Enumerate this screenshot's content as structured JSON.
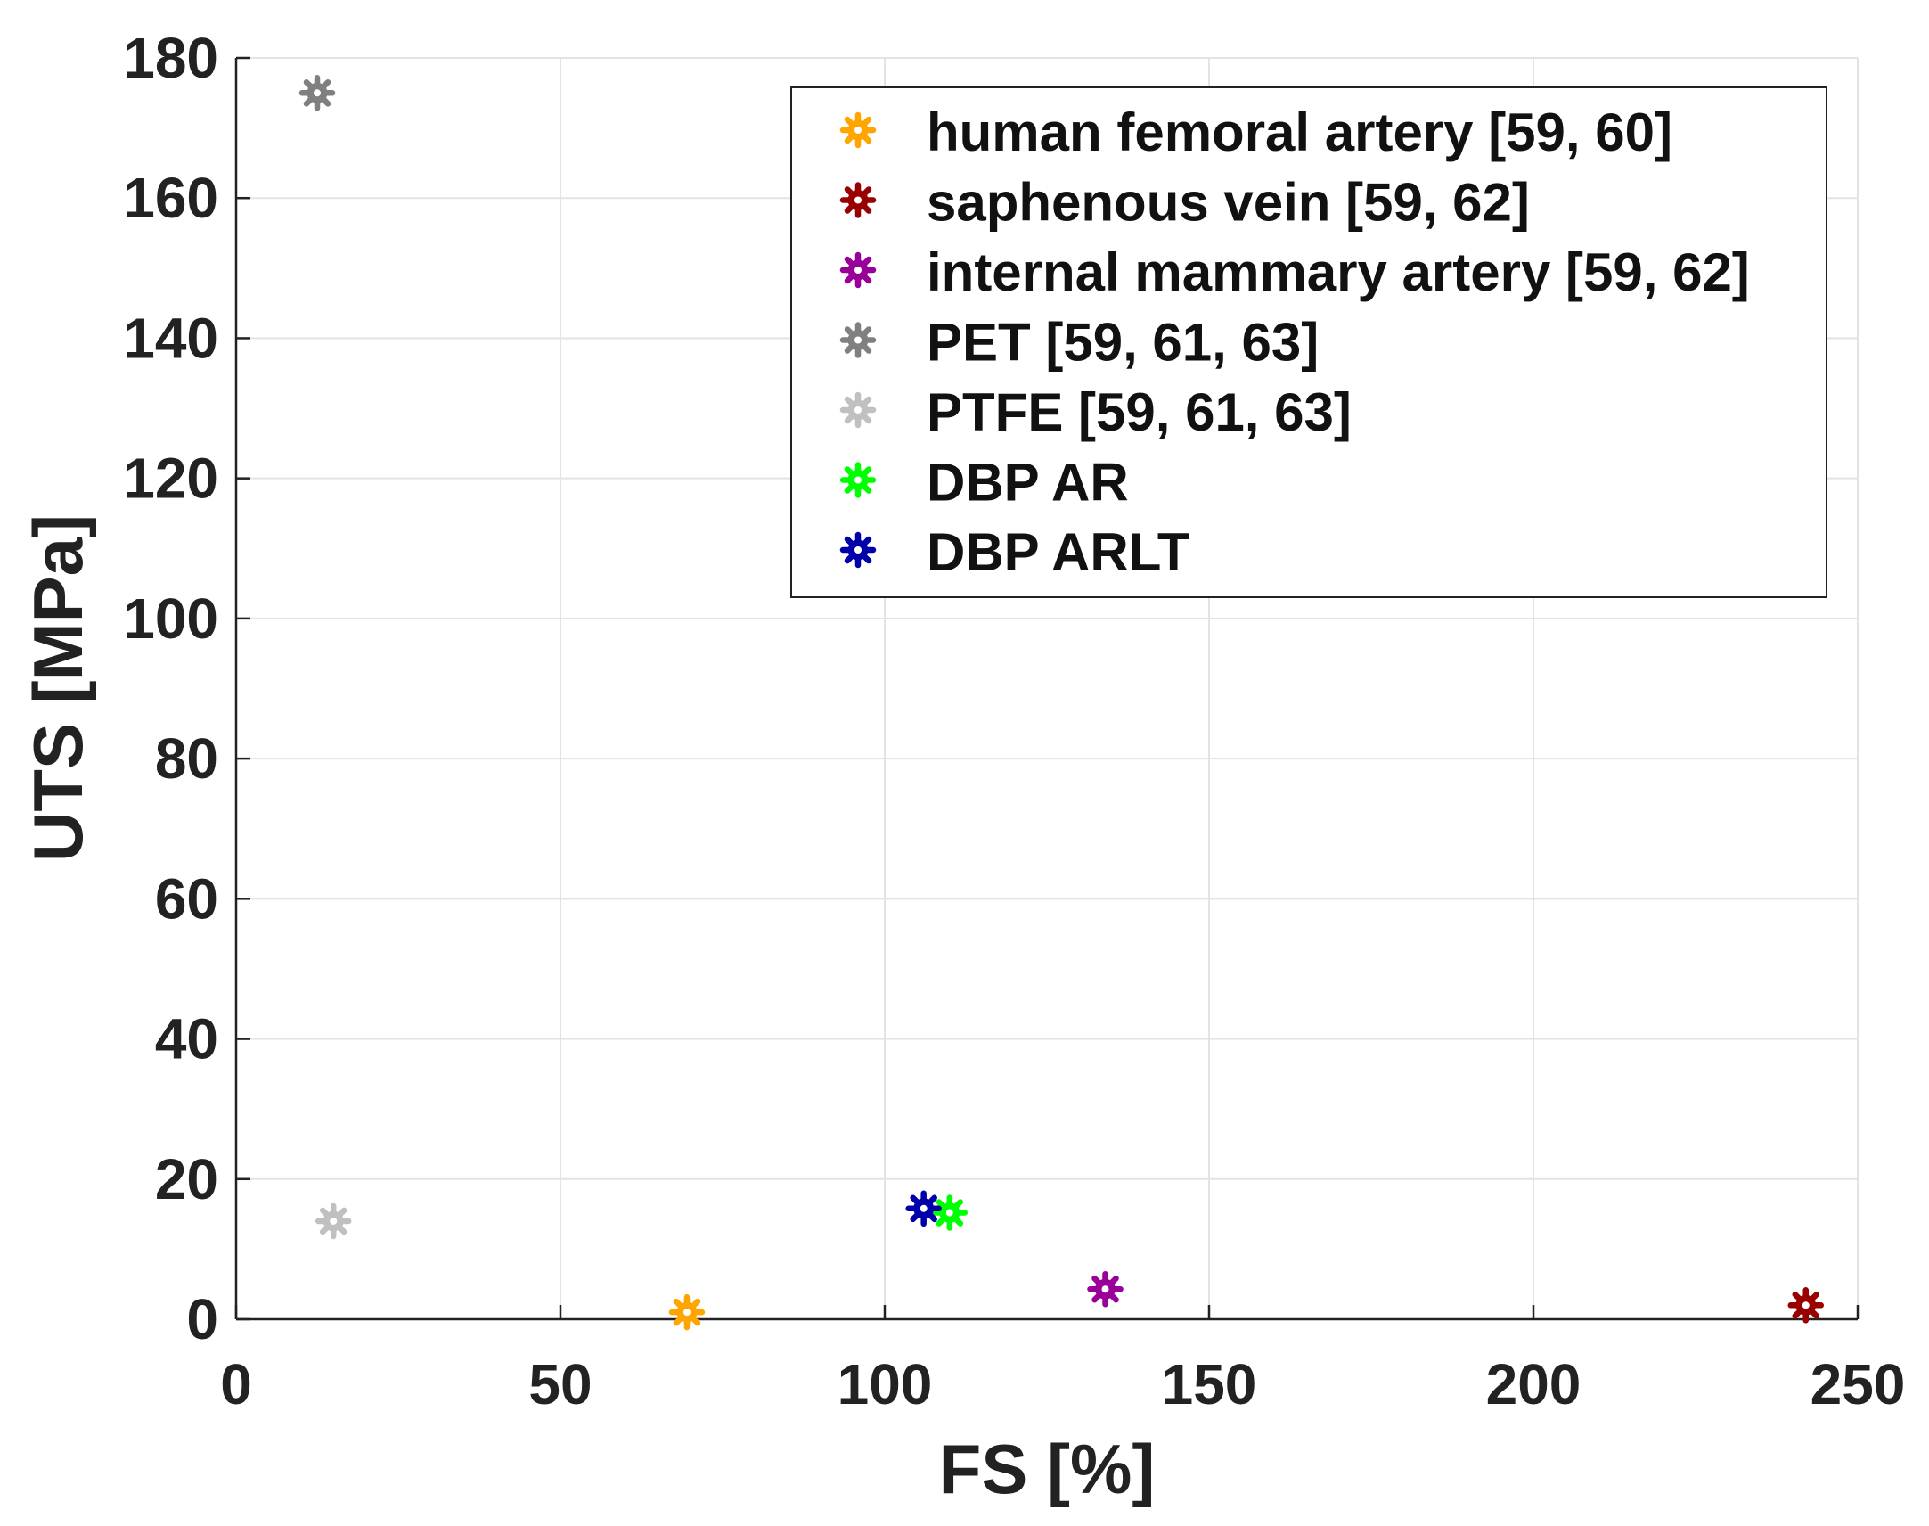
{
  "chart_data": {
    "type": "scatter",
    "title": "",
    "xlabel": "FS [%]",
    "ylabel": "UTS [MPa]",
    "xlim": [
      0,
      250
    ],
    "ylim": [
      0,
      180
    ],
    "xticks": [
      0,
      50,
      100,
      150,
      200,
      250
    ],
    "yticks": [
      0,
      20,
      40,
      60,
      80,
      100,
      120,
      140,
      160,
      180
    ],
    "grid": true,
    "legend_position": "top-right",
    "marker": "asterisk",
    "series": [
      {
        "name": "human femoral artery [59, 60]",
        "color": "#FFA500",
        "x": [
          69.5
        ],
        "y": [
          1.0
        ]
      },
      {
        "name": "saphenous vein [59, 62]",
        "color": "#990000",
        "x": [
          242
        ],
        "y": [
          2.0
        ]
      },
      {
        "name": "internal mammary artery [59, 62]",
        "color": "#990099",
        "x": [
          134
        ],
        "y": [
          4.3
        ]
      },
      {
        "name": "PET [59, 61, 63]",
        "color": "#808080",
        "x": [
          12.5
        ],
        "y": [
          175
        ]
      },
      {
        "name": "PTFE [59, 61, 63]",
        "color": "#C0C0C0",
        "x": [
          15
        ],
        "y": [
          14
        ]
      },
      {
        "name": "DBP AR",
        "color": "#00FF00",
        "x": [
          110
        ],
        "y": [
          15.2
        ]
      },
      {
        "name": "DBP ARLT",
        "color": "#0000AA",
        "x": [
          106
        ],
        "y": [
          15.8
        ]
      }
    ]
  }
}
